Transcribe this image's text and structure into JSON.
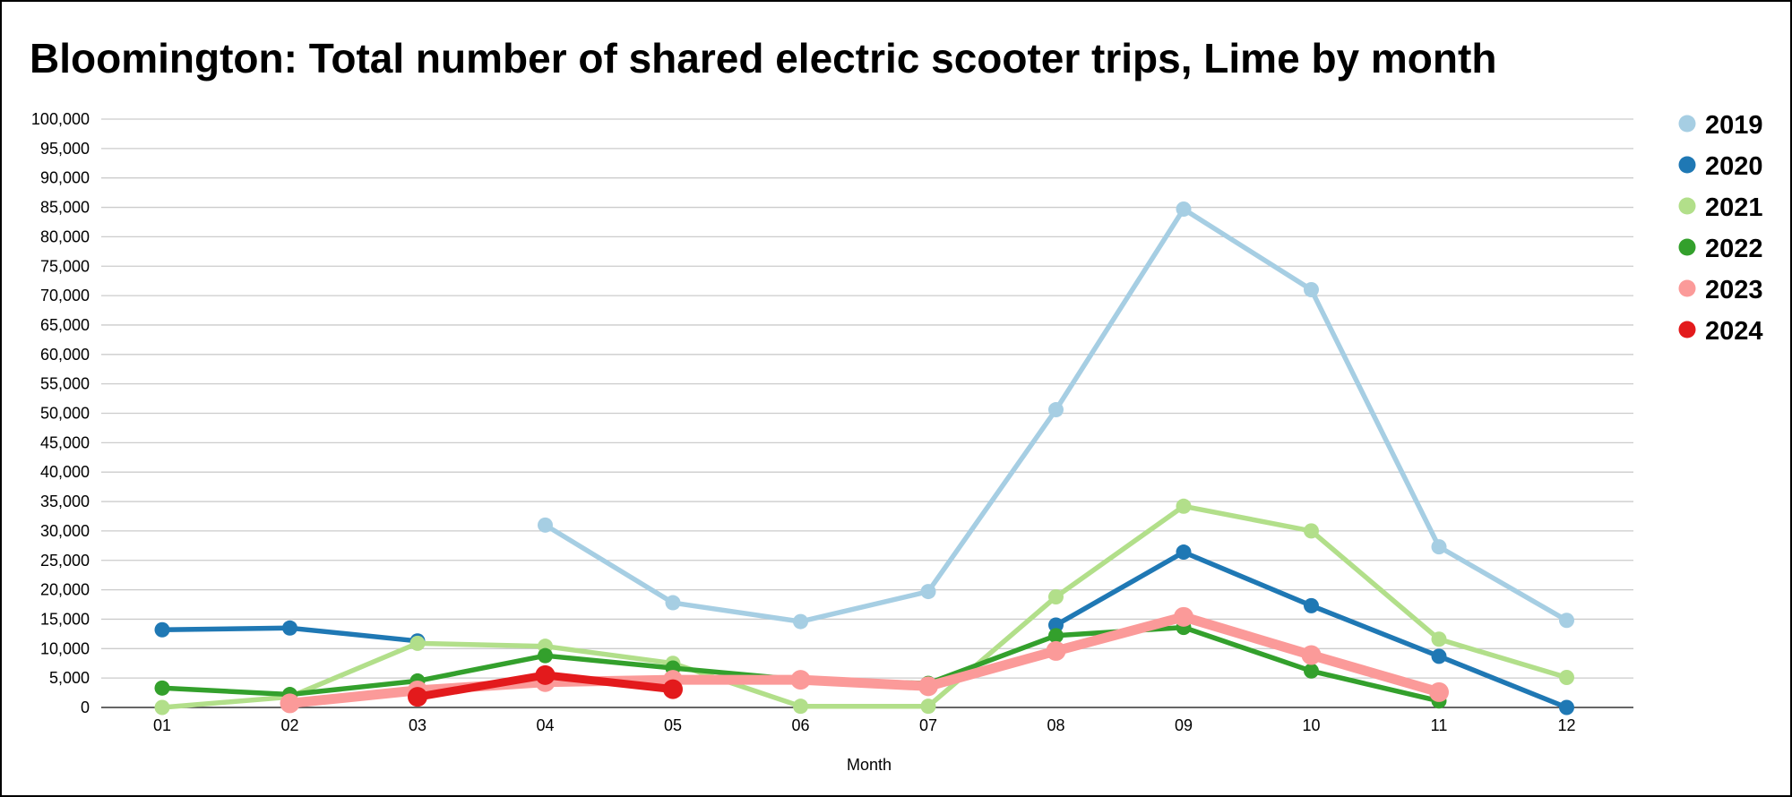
{
  "chart_data": {
    "type": "line",
    "title": "Bloomington: Total number of shared electric scooter trips, Lime by month",
    "xlabel": "Month",
    "ylabel": "",
    "categories": [
      "01",
      "02",
      "03",
      "04",
      "05",
      "06",
      "07",
      "08",
      "09",
      "10",
      "11",
      "12"
    ],
    "y_ticks": [
      "0",
      "5,000",
      "10,000",
      "15,000",
      "20,000",
      "25,000",
      "30,000",
      "35,000",
      "40,000",
      "45,000",
      "50,000",
      "55,000",
      "60,000",
      "65,000",
      "70,000",
      "75,000",
      "80,000",
      "85,000",
      "90,000",
      "95,000",
      "100,000"
    ],
    "ylim": [
      0,
      100000
    ],
    "grid": true,
    "legend_position": "right",
    "series": [
      {
        "name": "2019",
        "color": "#a6cee3",
        "values": [
          null,
          null,
          null,
          31000,
          17800,
          14600,
          19700,
          50600,
          84700,
          71000,
          27300,
          14800
        ]
      },
      {
        "name": "2020",
        "color": "#1f78b4",
        "values": [
          13200,
          13500,
          11300,
          null,
          null,
          null,
          null,
          14000,
          26400,
          17300,
          8700,
          0
        ]
      },
      {
        "name": "2021",
        "color": "#b2df8a",
        "values": [
          0,
          1800,
          10900,
          10400,
          7500,
          200,
          200,
          18800,
          34200,
          30000,
          11600,
          5100
        ]
      },
      {
        "name": "2022",
        "color": "#33a02c",
        "values": [
          3300,
          2200,
          4500,
          8800,
          6700,
          4700,
          4100,
          12200,
          13600,
          6200,
          1100,
          null
        ]
      },
      {
        "name": "2023",
        "color": "#fb9a99",
        "values": [
          null,
          700,
          2900,
          4300,
          4700,
          4700,
          3600,
          9600,
          15400,
          8900,
          2600,
          null
        ]
      },
      {
        "name": "2024",
        "color": "#e31a1c",
        "values": [
          null,
          null,
          1800,
          5500,
          3100,
          null,
          null,
          null,
          null,
          null,
          null,
          null
        ]
      }
    ]
  }
}
